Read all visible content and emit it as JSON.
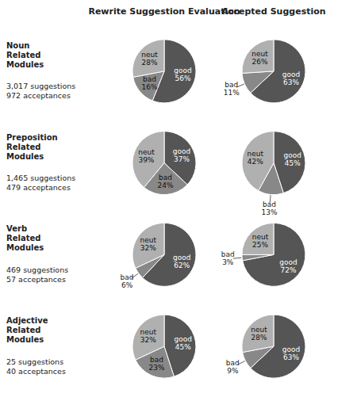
{
  "chart_data": {
    "type": "pie",
    "annotations": [
      "Rewrite Suggestion Evaluation",
      "Accepted Suggestion"
    ],
    "categories": [
      "good",
      "bad",
      "neut"
    ],
    "colors": [
      "#555555",
      "#888888",
      "#b0b0b0"
    ],
    "data_labels": true,
    "series": [
      {
        "name": "Noun\nRelated\nModules",
        "annotation": "3,017 suggestions\n972 acceptances",
        "values": [
          [
            56,
            16,
            28
          ],
          [
            63,
            11,
            26
          ]
        ],
        "value_labels": [
          [
            "56%",
            "16%",
            "28%"
          ],
          [
            "63%",
            "11%",
            "26%"
          ]
        ]
      },
      {
        "name": "Preposition\nRelated\nModules",
        "annotation": "1,465 suggestions\n479 acceptances",
        "values": [
          [
            37,
            24,
            39
          ],
          [
            45,
            13,
            42
          ]
        ],
        "value_labels": [
          [
            "37%",
            "24%",
            "39%"
          ],
          [
            "45%",
            "13%",
            "42%"
          ]
        ]
      },
      {
        "name": "Verb\nRelated\nModules",
        "annotation": "469 suggestions\n57 acceptances",
        "values": [
          [
            62,
            6,
            32
          ],
          [
            72,
            3,
            25
          ]
        ],
        "value_labels": [
          [
            "62%",
            "6%",
            "32%"
          ],
          [
            "72%",
            "3%",
            "25%"
          ]
        ]
      },
      {
        "name": "Adjective\nRelated\nModules",
        "annotation": "25 suggestions\n40 acceptances",
        "values": [
          [
            45,
            23,
            32
          ],
          [
            63,
            9,
            28
          ]
        ],
        "value_labels": [
          [
            "45%",
            "23%",
            "32%"
          ],
          [
            "63%",
            "9%",
            "28%"
          ]
        ]
      }
    ]
  }
}
